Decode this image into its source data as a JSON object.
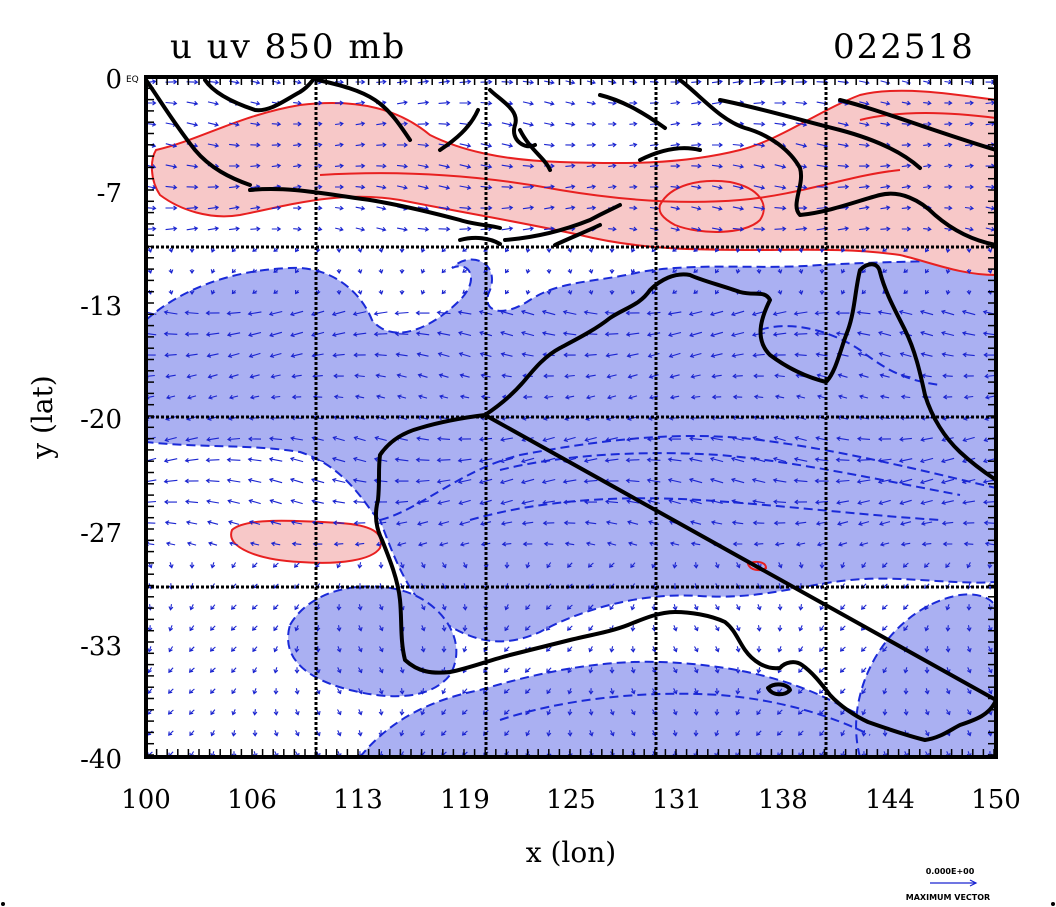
{
  "title": {
    "left": "u uv 850 mb",
    "right": "022518"
  },
  "axes": {
    "xlabel": "x (lon)",
    "ylabel": "y (lat)",
    "x_ticks": [
      "100",
      "106",
      "113",
      "119",
      "125",
      "131",
      "138",
      "144",
      "150"
    ],
    "y_ticks": [
      "0",
      "-7",
      "-13",
      "-20",
      "-27",
      "-33",
      "-40"
    ],
    "y_top_suffix": "EQ",
    "xlim": [
      100,
      150
    ],
    "ylim": [
      -40,
      0
    ],
    "grid": "on"
  },
  "vector_legend": {
    "magnitude": "0.000E+00",
    "caption": "MAXIMUM VECTOR"
  },
  "colors": {
    "positive_fill": "#f7c8c8",
    "positive_line": "#e82020",
    "negative_fill": "#aab0f2",
    "negative_line": "#1a2ad8",
    "vectors": "#1a24d0",
    "coastline": "#000000"
  },
  "features": {
    "coastline": "Australia and Indonesian archipelago",
    "positive_contours": "westerly wind band near equator and small patch west of Australia",
    "negative_contours": "easterly wind regions over and around Australia"
  }
}
